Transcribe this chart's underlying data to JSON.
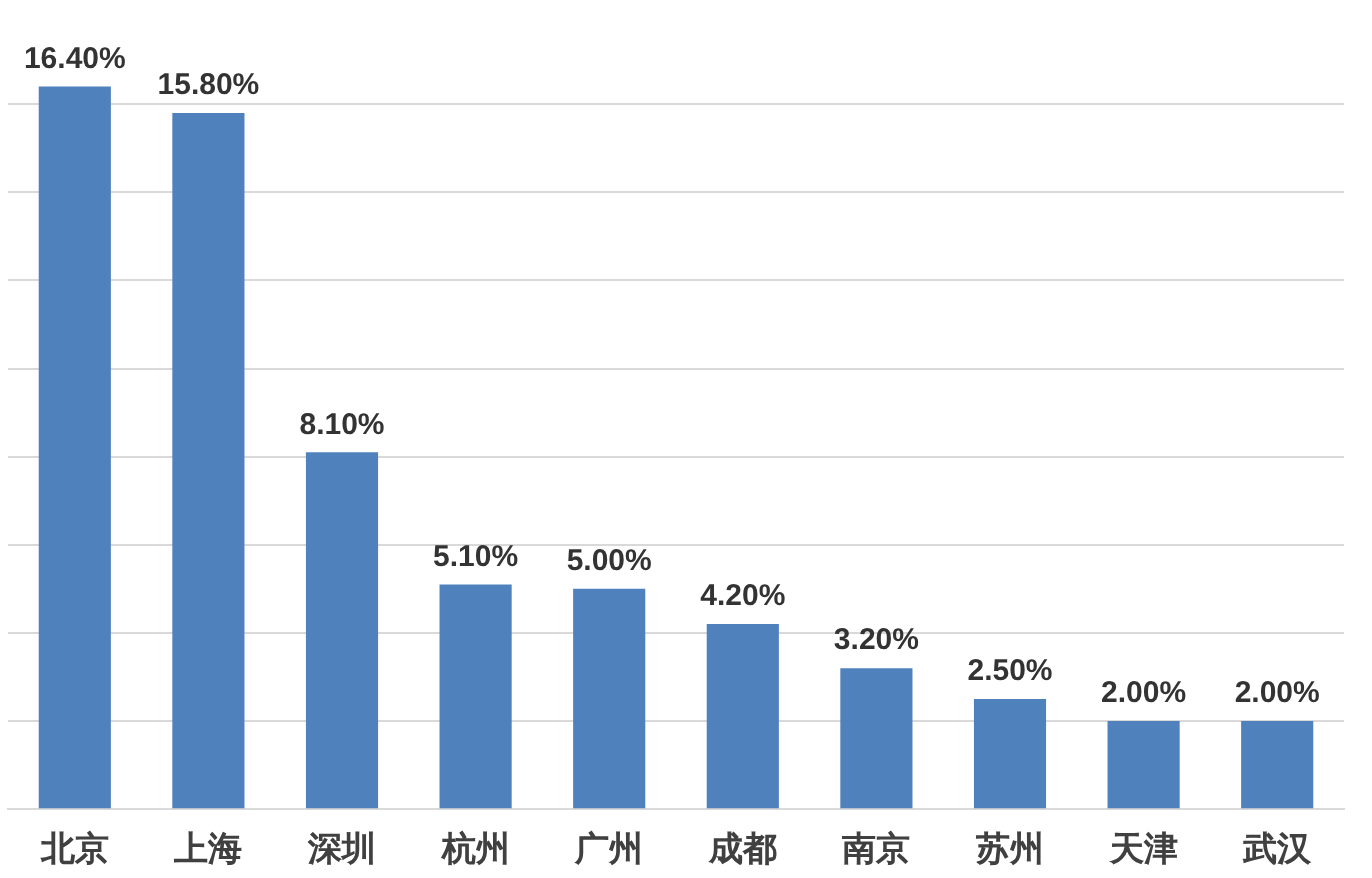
{
  "chart_data": {
    "type": "bar",
    "categories": [
      "北京",
      "上海",
      "深圳",
      "杭州",
      "广州",
      "成都",
      "南京",
      "苏州",
      "天津",
      "武汉"
    ],
    "values": [
      16.4,
      15.8,
      8.1,
      5.1,
      5.0,
      4.2,
      3.2,
      2.5,
      2.0,
      2.0
    ],
    "value_labels": [
      "16.40%",
      "15.80%",
      "8.10%",
      "5.10%",
      "5.00%",
      "4.20%",
      "3.20%",
      "2.50%",
      "2.00%",
      "2.00%"
    ],
    "color": "#4f81bd",
    "yticks": [
      {
        "value": 0,
        "label": null
      },
      {
        "value": 2,
        "label": null
      },
      {
        "value": 4,
        "label": null
      },
      {
        "value": 6,
        "label": null
      },
      {
        "value": 8,
        "label": null
      },
      {
        "value": 10,
        "label": null
      },
      {
        "value": 12,
        "label": null
      },
      {
        "value": 14,
        "label": null
      },
      {
        "value": 16,
        "label": null
      }
    ],
    "grid": "y",
    "tick_labels": "x"
  }
}
